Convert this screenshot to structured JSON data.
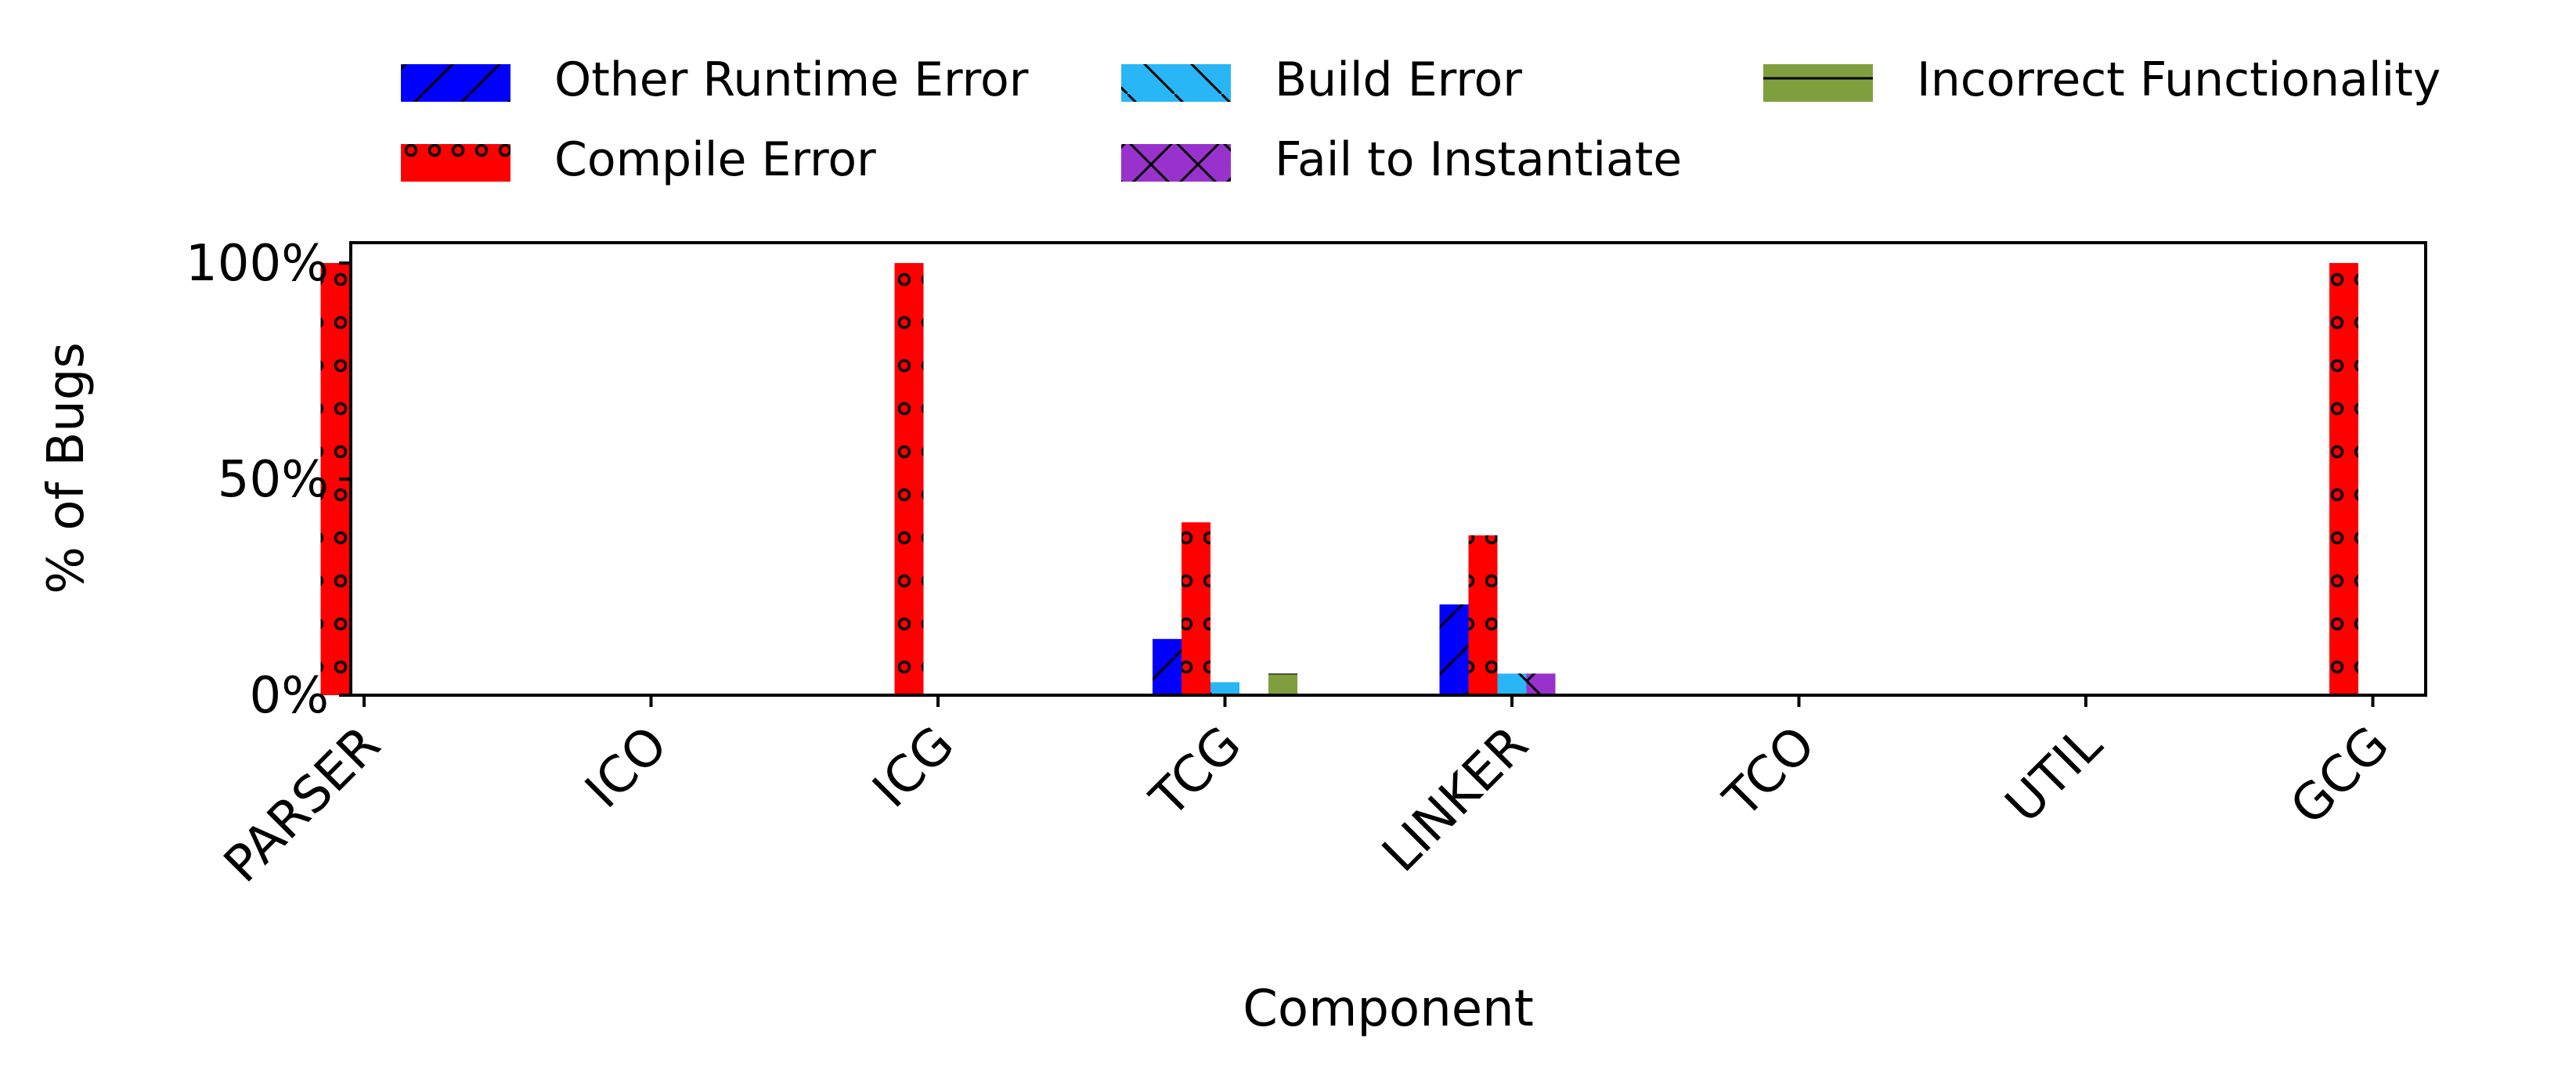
{
  "chart_data": {
    "type": "bar",
    "title": "",
    "xlabel": "Component",
    "ylabel": "% of Bugs",
    "ylim": [
      0,
      1.05
    ],
    "yticks": [
      0,
      0.5,
      1.0
    ],
    "ytick_labels": [
      "0%",
      "50%",
      "100%"
    ],
    "categories": [
      "PARSER",
      "ICO",
      "ICG",
      "TCG",
      "LINKER",
      "TCO",
      "UTIL",
      "GCG"
    ],
    "x": [
      0,
      1,
      2,
      3,
      4,
      5,
      6,
      7
    ],
    "grid": false,
    "legend_position": "top",
    "series": [
      {
        "name": "Other Runtime Error",
        "color": "#0000ff",
        "hatch": "slash",
        "x": [
          3,
          4
        ],
        "values": [
          0.13,
          0.21
        ]
      },
      {
        "name": "Compile Error",
        "color": "#ff0000",
        "hatch": "dots",
        "x": [
          0,
          2,
          3,
          4,
          7
        ],
        "values": [
          1.0,
          1.0,
          0.4,
          0.37,
          1.0
        ]
      },
      {
        "name": "Build Error",
        "color": "#29b6f6",
        "hatch": "backslash",
        "x": [
          3,
          4
        ],
        "values": [
          0.03,
          0.05
        ]
      },
      {
        "name": "Fail to Instantiate",
        "color": "#9932cc",
        "hatch": "cross",
        "x": [
          4
        ],
        "values": [
          0.05
        ]
      },
      {
        "name": "Incorrect Functionality",
        "color": "#7f9f3f",
        "hatch": "horizontal",
        "x": [
          3
        ],
        "values": [
          0.05
        ]
      }
    ]
  }
}
